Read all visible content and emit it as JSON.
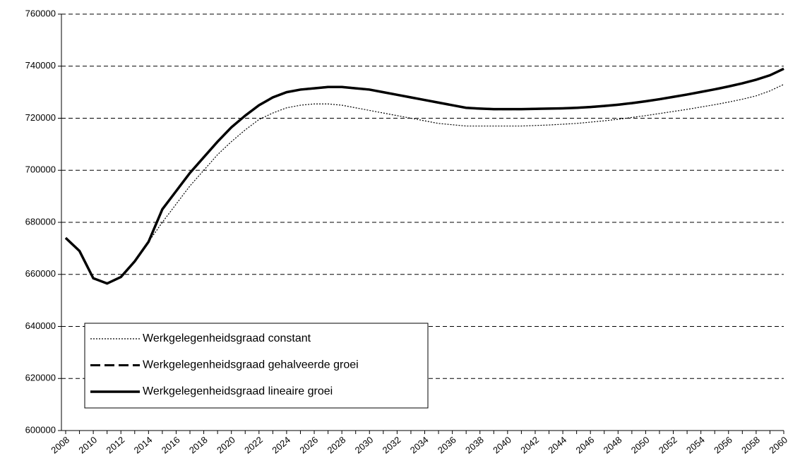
{
  "chart_data": {
    "type": "line",
    "categories": [
      "2008",
      null,
      "2010",
      null,
      "2012",
      null,
      "2014",
      null,
      "2016",
      null,
      "2018",
      null,
      "2020",
      null,
      "2022",
      null,
      "2024",
      null,
      "2026",
      null,
      "2028",
      null,
      "2030",
      null,
      "2032",
      null,
      "2034",
      null,
      "2036",
      null,
      "2038",
      null,
      "2040",
      null,
      "2042",
      null,
      "2044",
      null,
      "2046",
      null,
      "2048",
      null,
      "2050",
      null,
      "2052",
      null,
      "2054",
      null,
      "2056",
      null,
      "2058",
      null,
      "2060"
    ],
    "series": [
      {
        "name": "Werkgelegenheidsgraad constant",
        "color": "#000000",
        "style": "dotted",
        "values": [
          674000,
          669000,
          658500,
          656500,
          659000,
          665000,
          672500,
          680000,
          687000,
          694000,
          700000,
          706000,
          711000,
          715500,
          719500,
          722000,
          724000,
          725000,
          725500,
          725500,
          725000,
          724000,
          723000,
          722000,
          721000,
          720000,
          719000,
          718000,
          717500,
          717000,
          717000,
          717000,
          717000,
          717000,
          717200,
          717400,
          717700,
          718000,
          718500,
          719000,
          719600,
          720300,
          721000,
          721800,
          722600,
          723400,
          724300,
          725200,
          726200,
          727300,
          728600,
          730500,
          733000
        ]
      },
      {
        "name": "Werkgelegenheidsgraad gehalveerde groei",
        "color": "#000000",
        "style": "dashed",
        "values": [
          674000,
          669000,
          658500,
          656500,
          659000,
          665000,
          672500,
          685000,
          692000,
          699000,
          705000,
          711000,
          716500,
          721000,
          725000,
          728000,
          730000,
          731000,
          731500,
          732000,
          732000,
          731500,
          731000,
          730000,
          729000,
          728000,
          727000,
          726000,
          725000,
          724000,
          723700,
          723500,
          723500,
          723500,
          723600,
          723700,
          723800,
          724000,
          724300,
          724700,
          725200,
          725800,
          726500,
          727300,
          728200,
          729100,
          730100,
          731100,
          732200,
          733400,
          734800,
          736500,
          739000
        ]
      },
      {
        "name": "Werkgelegenheidsgraad lineaire groei",
        "color": "#000000",
        "style": "solid",
        "values": [
          674000,
          669000,
          658500,
          656500,
          659000,
          665000,
          672500,
          685000,
          692000,
          699000,
          705000,
          711000,
          716500,
          721000,
          725000,
          728000,
          730000,
          731000,
          731500,
          732000,
          732000,
          731500,
          731000,
          730000,
          729000,
          728000,
          727000,
          726000,
          725000,
          724000,
          723700,
          723500,
          723500,
          723500,
          723600,
          723700,
          723800,
          724000,
          724300,
          724700,
          725200,
          725800,
          726500,
          727300,
          728200,
          729100,
          730100,
          731100,
          732200,
          733400,
          734800,
          736500,
          739000
        ]
      }
    ],
    "ylim": [
      600000,
      760000
    ],
    "yticks": [
      600000,
      620000,
      640000,
      660000,
      680000,
      700000,
      720000,
      740000,
      760000
    ],
    "grid": true
  }
}
